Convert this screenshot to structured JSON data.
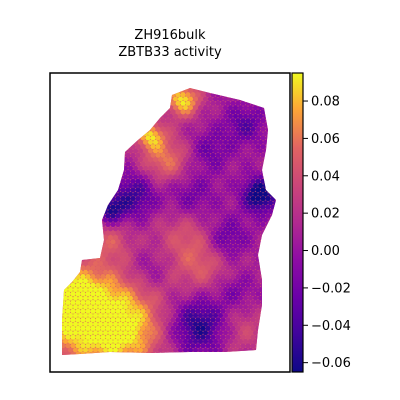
{
  "chart_data": {
    "type": "heatmap",
    "title": "ZH916bulk",
    "subtitle": "ZBTB33 activity",
    "xlabel": "",
    "ylabel": "",
    "colormap": "plasma",
    "colorbar": {
      "vmin": -0.065,
      "vmax": 0.095,
      "ticks": [
        0.08,
        0.06,
        0.04,
        0.02,
        0.0,
        -0.02,
        -0.04,
        -0.06
      ],
      "tick_labels": [
        "0.08",
        "0.06",
        "0.04",
        "0.02",
        "0.00",
        "−0.02",
        "−0.04",
        "−0.06"
      ]
    },
    "grid": false,
    "spot_summary": {
      "high_regions": [
        "bottom-left lobe",
        "upper-left arm",
        "top tip"
      ],
      "low_regions": [
        "lower-center",
        "left edge indent",
        "right-middle edge"
      ]
    }
  }
}
